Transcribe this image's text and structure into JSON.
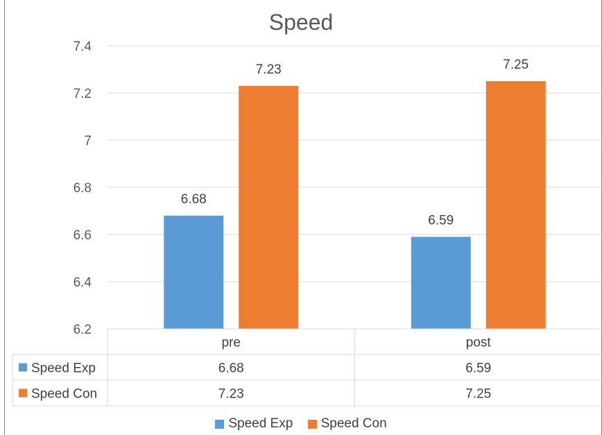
{
  "chart_data": {
    "type": "bar",
    "title": "Speed",
    "categories": [
      "pre",
      "post"
    ],
    "series": [
      {
        "name": "Speed Exp",
        "values": [
          6.68,
          6.59
        ],
        "color": "#5B9BD5"
      },
      {
        "name": "Speed Con",
        "values": [
          7.23,
          7.25
        ],
        "color": "#ED7D31"
      }
    ],
    "ylim": [
      6.2,
      7.4
    ],
    "yticks": [
      "6.2",
      "6.4",
      "6.6",
      "6.8",
      "7",
      "7.2",
      "7.4"
    ],
    "grid": true,
    "data_table": true,
    "legend": "bottom"
  }
}
